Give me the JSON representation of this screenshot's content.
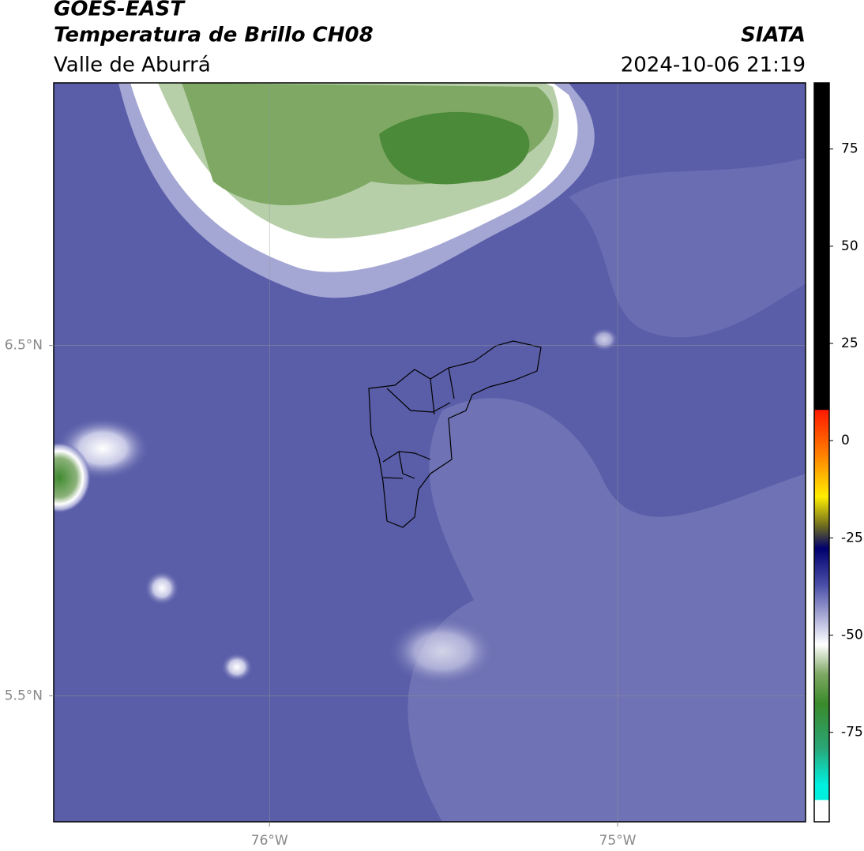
{
  "map": {
    "title": "GOES-EAST",
    "subtitle": "Temperatura de Brillo CH08",
    "region": "Valle de Aburrá",
    "source": "SIATA",
    "datetime": "2024-10-06 21:19",
    "xlim": [
      -76.62,
      -74.46
    ],
    "ylim": [
      5.14,
      7.25
    ],
    "xticks": [
      {
        "value": -76,
        "label": "76°W"
      },
      {
        "value": -75,
        "label": "75°W"
      }
    ],
    "yticks": [
      {
        "value": 6.5,
        "label": "6.5°N"
      },
      {
        "value": 5.5,
        "label": "5.5°N"
      }
    ],
    "grid": true,
    "colorbar": {
      "lim": [
        -98,
        92
      ],
      "ticks": [
        75,
        50,
        25,
        0,
        -25,
        -50,
        -75
      ]
    }
  }
}
